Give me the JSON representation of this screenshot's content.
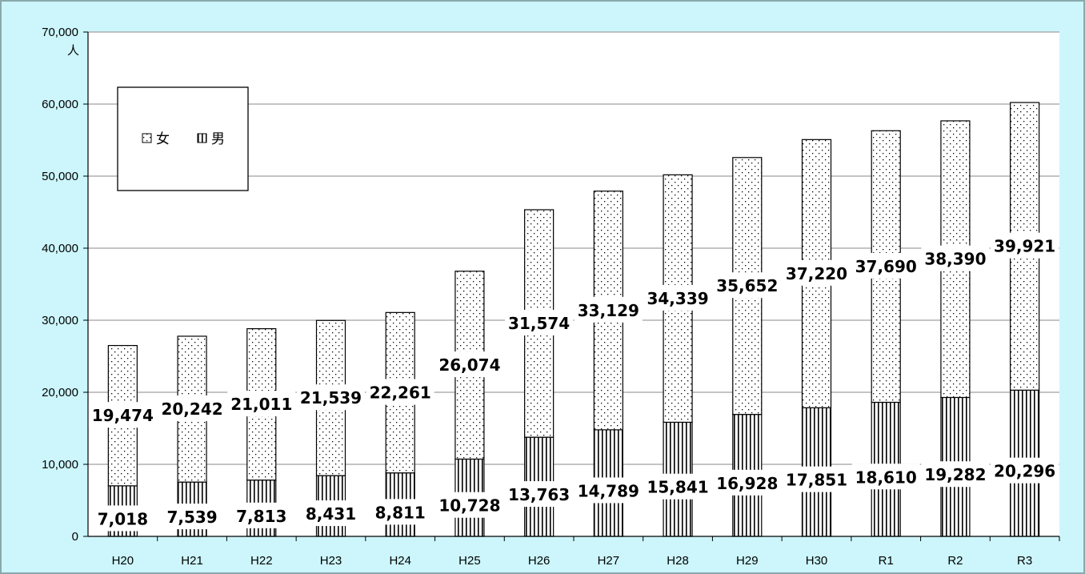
{
  "chart_data": {
    "type": "bar",
    "stacked": true,
    "categories": [
      "H20",
      "H21",
      "H22",
      "H23",
      "H24",
      "H25",
      "H26",
      "H27",
      "H28",
      "H29",
      "H30",
      "R1",
      "R2",
      "R3"
    ],
    "series": [
      {
        "name": "男",
        "values": [
          7018,
          7539,
          7813,
          8431,
          8811,
          10728,
          13763,
          14789,
          15841,
          16928,
          17851,
          18610,
          19282,
          20296
        ]
      },
      {
        "name": "女",
        "values": [
          19474,
          20242,
          21011,
          21539,
          22261,
          26074,
          31574,
          33129,
          34339,
          35652,
          37220,
          37690,
          38390,
          39921
        ]
      }
    ],
    "data_labels": [
      [
        "7,018",
        "7,539",
        "7,813",
        "8,431",
        "8,811",
        "10,728",
        "13,763",
        "14,789",
        "15,841",
        "16,928",
        "17,851",
        "18,610",
        "19,282",
        "20,296"
      ],
      [
        "19,474",
        "20,242",
        "21,011",
        "21,539",
        "22,261",
        "26,074",
        "31,574",
        "33,129",
        "34,339",
        "35,652",
        "37,220",
        "37,690",
        "38,390",
        "39,921"
      ]
    ],
    "ylim": [
      0,
      70000
    ],
    "yticks": [
      0,
      10000,
      20000,
      30000,
      40000,
      50000,
      60000,
      70000
    ],
    "ytick_labels": [
      "0",
      "10,000",
      "20,000",
      "30,000",
      "40,000",
      "50,000",
      "60,000",
      "70,000"
    ],
    "ylabel_unit": "人",
    "grid": true,
    "legend_placement": "top-left",
    "colors": {
      "background": "#ccf6fb",
      "plot": "#ffffff",
      "grid": "#a0a0a0",
      "ink": "#000000"
    }
  }
}
